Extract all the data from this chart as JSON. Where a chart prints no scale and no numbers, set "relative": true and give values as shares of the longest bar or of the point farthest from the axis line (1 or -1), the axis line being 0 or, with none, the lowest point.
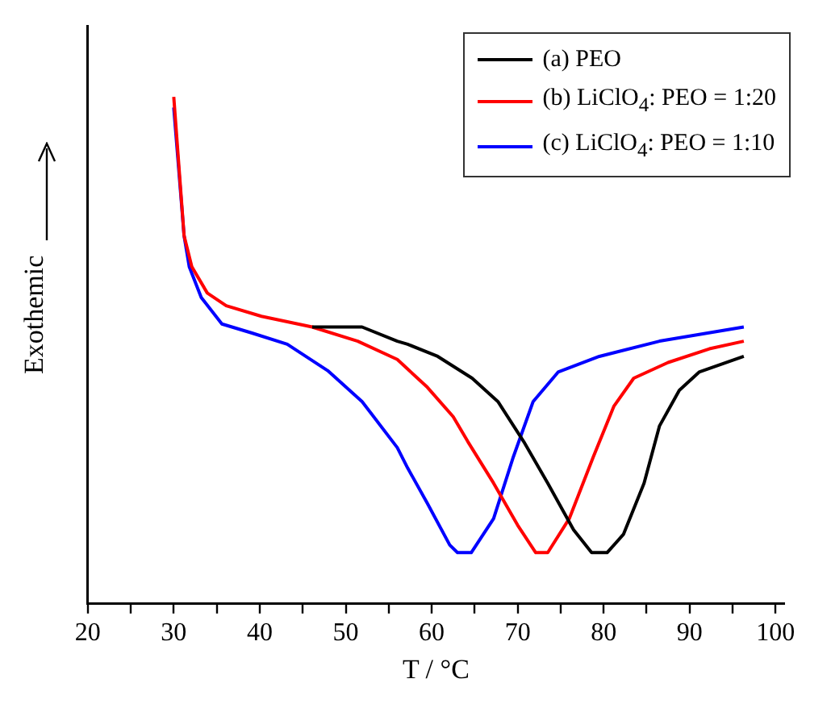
{
  "chart_data": {
    "type": "line",
    "relative": true,
    "xlabel": "T / °C",
    "ylabel": "Exothemic",
    "xlim": [
      20,
      101
    ],
    "xticks": [
      20,
      {
        "value": 25,
        "label": null
      },
      30,
      {
        "value": 35,
        "label": null
      },
      40,
      {
        "value": 45,
        "label": null
      },
      50,
      {
        "value": 55,
        "label": null
      },
      60,
      {
        "value": 65,
        "label": null
      },
      70,
      {
        "value": 75,
        "label": null
      },
      80,
      {
        "value": 85,
        "label": null
      },
      90,
      {
        "value": 95,
        "label": null
      },
      100
    ],
    "grid": false,
    "legend": "top right",
    "marker": "none",
    "line_style": "solid",
    "series": [
      {
        "name": "(a) PEO",
        "color": "#000000",
        "x": [
          46.1,
          51.9,
          56.0,
          57.2,
          60.7,
          64.7,
          67.7,
          70.7,
          73.5,
          76.5,
          78.6,
          80.4,
          82.3,
          84.7,
          86.5,
          88.8,
          91.1,
          96.3
        ],
        "values": [
          0.546,
          0.546,
          0.518,
          0.512,
          0.488,
          0.445,
          0.399,
          0.32,
          0.238,
          0.146,
          0.101,
          0.101,
          0.137,
          0.238,
          0.351,
          0.421,
          0.457,
          0.488
        ]
      },
      {
        "name": "(b) LiClO$_{4}$: PEO = 1:20",
        "color": "#ff0000",
        "x": [
          30,
          31.2,
          32.1,
          33.9,
          36.1,
          40.2,
          46.1,
          51.4,
          56.0,
          59.5,
          62.5,
          64.2,
          67.2,
          70.0,
          72.1,
          73.5,
          76.0,
          78.8,
          81.2,
          83.5,
          87.5,
          92.3,
          96.3
        ],
        "values": [
          1.0,
          0.726,
          0.665,
          0.613,
          0.588,
          0.567,
          0.546,
          0.518,
          0.482,
          0.427,
          0.369,
          0.32,
          0.238,
          0.155,
          0.101,
          0.101,
          0.168,
          0.29,
          0.39,
          0.445,
          0.476,
          0.503,
          0.518
        ]
      },
      {
        "name": "(c) LiClO$_{4}$: PEO = 1:10",
        "color": "#0000ff",
        "x": [
          30,
          31.2,
          31.8,
          33.2,
          35.6,
          39.1,
          43.2,
          47.9,
          51.9,
          56.0,
          57.2,
          59.5,
          62.1,
          63.0,
          64.6,
          67.2,
          69.5,
          71.8,
          74.7,
          79.5,
          86.5,
          96.3
        ],
        "values": [
          0.979,
          0.726,
          0.665,
          0.604,
          0.552,
          0.534,
          0.512,
          0.46,
          0.399,
          0.308,
          0.268,
          0.198,
          0.116,
          0.101,
          0.101,
          0.168,
          0.29,
          0.399,
          0.457,
          0.488,
          0.518,
          0.546
        ]
      }
    ]
  }
}
